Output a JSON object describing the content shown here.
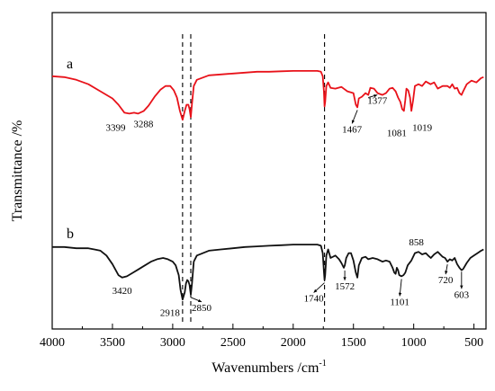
{
  "chart_data": {
    "type": "line",
    "xlabel": "Wavenumbers /cm",
    "xlabel_sup": "-1",
    "ylabel": "Transmittance /%",
    "xlim": [
      4000,
      400
    ],
    "x_reversed": true,
    "x_ticks": [
      4000,
      3500,
      3000,
      2500,
      2000,
      1500,
      1000,
      500
    ],
    "y_ticks_shown": false,
    "grid": false,
    "series": [
      {
        "name": "a",
        "color": "#e8121a",
        "x": [
          4000,
          3900,
          3800,
          3700,
          3600,
          3500,
          3450,
          3400,
          3360,
          3320,
          3288,
          3240,
          3200,
          3150,
          3100,
          3060,
          3020,
          2990,
          2965,
          2940,
          2918,
          2900,
          2885,
          2870,
          2860,
          2850,
          2840,
          2825,
          2800,
          2700,
          2600,
          2500,
          2400,
          2300,
          2200,
          2100,
          2000,
          1900,
          1800,
          1770,
          1755,
          1745,
          1740,
          1735,
          1725,
          1710,
          1690,
          1650,
          1600,
          1550,
          1500,
          1480,
          1467,
          1455,
          1430,
          1400,
          1377,
          1360,
          1330,
          1300,
          1260,
          1230,
          1200,
          1175,
          1150,
          1130,
          1110,
          1095,
          1081,
          1070,
          1060,
          1045,
          1030,
          1019,
          1005,
          990,
          960,
          930,
          900,
          860,
          830,
          800,
          760,
          720,
          700,
          680,
          660,
          640,
          620,
          603,
          590,
          560,
          520,
          480,
          440,
          420
        ],
        "y": [
          0.79,
          0.78,
          0.75,
          0.7,
          0.62,
          0.54,
          0.47,
          0.38,
          0.37,
          0.38,
          0.37,
          0.4,
          0.46,
          0.56,
          0.64,
          0.68,
          0.68,
          0.63,
          0.55,
          0.4,
          0.3,
          0.4,
          0.47,
          0.47,
          0.42,
          0.33,
          0.48,
          0.68,
          0.75,
          0.8,
          0.81,
          0.82,
          0.83,
          0.84,
          0.84,
          0.845,
          0.85,
          0.85,
          0.85,
          0.84,
          0.79,
          0.62,
          0.45,
          0.5,
          0.68,
          0.72,
          0.66,
          0.65,
          0.67,
          0.62,
          0.6,
          0.47,
          0.44,
          0.54,
          0.56,
          0.6,
          0.58,
          0.66,
          0.65,
          0.6,
          0.58,
          0.6,
          0.65,
          0.66,
          0.62,
          0.55,
          0.5,
          0.42,
          0.4,
          0.52,
          0.65,
          0.63,
          0.55,
          0.4,
          0.52,
          0.68,
          0.7,
          0.68,
          0.73,
          0.7,
          0.72,
          0.65,
          0.68,
          0.68,
          0.66,
          0.7,
          0.65,
          0.66,
          0.6,
          0.58,
          0.62,
          0.7,
          0.74,
          0.72,
          0.77,
          0.78
        ],
        "annotations": [
          "3399",
          "3288",
          "1467",
          "1377",
          "1081",
          "1019"
        ]
      },
      {
        "name": "b",
        "color": "#111111",
        "x": [
          4000,
          3900,
          3800,
          3700,
          3650,
          3600,
          3550,
          3500,
          3450,
          3420,
          3380,
          3330,
          3280,
          3230,
          3180,
          3130,
          3080,
          3040,
          3000,
          2975,
          2950,
          2935,
          2918,
          2900,
          2890,
          2880,
          2870,
          2860,
          2850,
          2840,
          2825,
          2800,
          2700,
          2600,
          2500,
          2400,
          2300,
          2200,
          2100,
          2000,
          1900,
          1800,
          1770,
          1755,
          1745,
          1740,
          1735,
          1725,
          1710,
          1690,
          1650,
          1620,
          1600,
          1580,
          1572,
          1560,
          1540,
          1520,
          1500,
          1480,
          1467,
          1455,
          1430,
          1400,
          1377,
          1340,
          1300,
          1260,
          1230,
          1200,
          1175,
          1160,
          1150,
          1140,
          1130,
          1120,
          1101,
          1085,
          1070,
          1050,
          1019,
          990,
          960,
          930,
          900,
          880,
          858,
          830,
          800,
          760,
          740,
          720,
          700,
          680,
          660,
          640,
          620,
          603,
          590,
          560,
          530,
          500,
          470,
          440,
          420
        ],
        "y": [
          0.45,
          0.45,
          0.44,
          0.44,
          0.43,
          0.42,
          0.38,
          0.31,
          0.22,
          0.2,
          0.21,
          0.24,
          0.27,
          0.3,
          0.33,
          0.35,
          0.36,
          0.35,
          0.33,
          0.3,
          0.22,
          0.1,
          0.02,
          0.08,
          0.15,
          0.18,
          0.17,
          0.14,
          0.06,
          0.15,
          0.33,
          0.38,
          0.42,
          0.43,
          0.44,
          0.45,
          0.455,
          0.46,
          0.465,
          0.47,
          0.47,
          0.47,
          0.46,
          0.4,
          0.25,
          0.18,
          0.22,
          0.38,
          0.43,
          0.36,
          0.38,
          0.35,
          0.32,
          0.28,
          0.3,
          0.36,
          0.4,
          0.4,
          0.34,
          0.24,
          0.2,
          0.3,
          0.36,
          0.37,
          0.35,
          0.36,
          0.35,
          0.33,
          0.34,
          0.33,
          0.28,
          0.24,
          0.23,
          0.28,
          0.26,
          0.22,
          0.21,
          0.22,
          0.24,
          0.3,
          0.34,
          0.4,
          0.41,
          0.39,
          0.4,
          0.38,
          0.36,
          0.39,
          0.41,
          0.37,
          0.36,
          0.33,
          0.35,
          0.34,
          0.36,
          0.31,
          0.28,
          0.26,
          0.27,
          0.32,
          0.36,
          0.38,
          0.4,
          0.42,
          0.43
        ],
        "annotations": [
          "3420",
          "2918",
          "2850",
          "1740",
          "1572",
          "1101",
          "858",
          "720",
          "603"
        ]
      }
    ],
    "reference_lines_x": [
      2918,
      2850,
      1740
    ],
    "annotations": [
      {
        "text": "3399",
        "series": "a",
        "x": 3399,
        "y": 0.36
      },
      {
        "text": "3288",
        "series": "a",
        "x": 3288,
        "y": 0.36
      },
      {
        "text": "1467",
        "series": "a",
        "x": 1467,
        "y": 0.44
      },
      {
        "text": "1377",
        "series": "a",
        "x": 1377,
        "y": 0.58
      },
      {
        "text": "1081",
        "series": "a",
        "x": 1081,
        "y": 0.4
      },
      {
        "text": "1019",
        "series": "a",
        "x": 1019,
        "y": 0.4
      },
      {
        "text": "3420",
        "series": "b",
        "x": 3420,
        "y": 0.2
      },
      {
        "text": "2918",
        "series": "b",
        "x": 2918,
        "y": 0.02
      },
      {
        "text": "2850",
        "series": "b",
        "x": 2850,
        "y": 0.06
      },
      {
        "text": "1740",
        "series": "b",
        "x": 1740,
        "y": 0.18
      },
      {
        "text": "1572",
        "series": "b",
        "x": 1572,
        "y": 0.28
      },
      {
        "text": "1101",
        "series": "b",
        "x": 1101,
        "y": 0.21
      },
      {
        "text": "858",
        "series": "b",
        "x": 858,
        "y": 0.36
      },
      {
        "text": "720",
        "series": "b",
        "x": 720,
        "y": 0.33
      },
      {
        "text": "603",
        "series": "b",
        "x": 603,
        "y": 0.27
      }
    ]
  }
}
